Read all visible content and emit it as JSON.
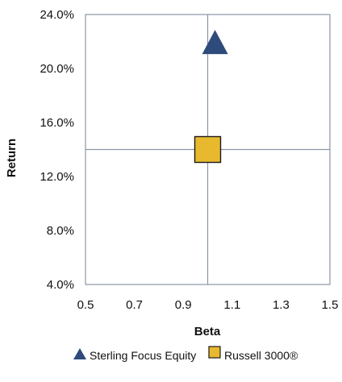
{
  "chart_data": {
    "type": "scatter",
    "xlabel": "Beta",
    "ylabel": "Return",
    "xlim": [
      0.5,
      1.5
    ],
    "ylim": [
      0.04,
      0.24
    ],
    "x_ticks": [
      "0.5",
      "0.7",
      "0.9",
      "1.1",
      "1.3",
      "1.5"
    ],
    "y_ticks": [
      "24.0%",
      "20.0%",
      "16.0%",
      "12.0%",
      "8.0%",
      "4.0%"
    ],
    "crosshair": {
      "x": 1.0,
      "y": 0.14
    },
    "grid": false,
    "legend_position": "bottom",
    "series": [
      {
        "name": "Sterling Focus Equity",
        "marker": "triangle",
        "color": "#2f4b7c",
        "points": [
          {
            "x": 1.03,
            "y": 0.219
          }
        ]
      },
      {
        "name": "Russell 3000®",
        "marker": "square",
        "color": "#e8b92e",
        "points": [
          {
            "x": 1.0,
            "y": 0.14
          }
        ]
      }
    ]
  }
}
